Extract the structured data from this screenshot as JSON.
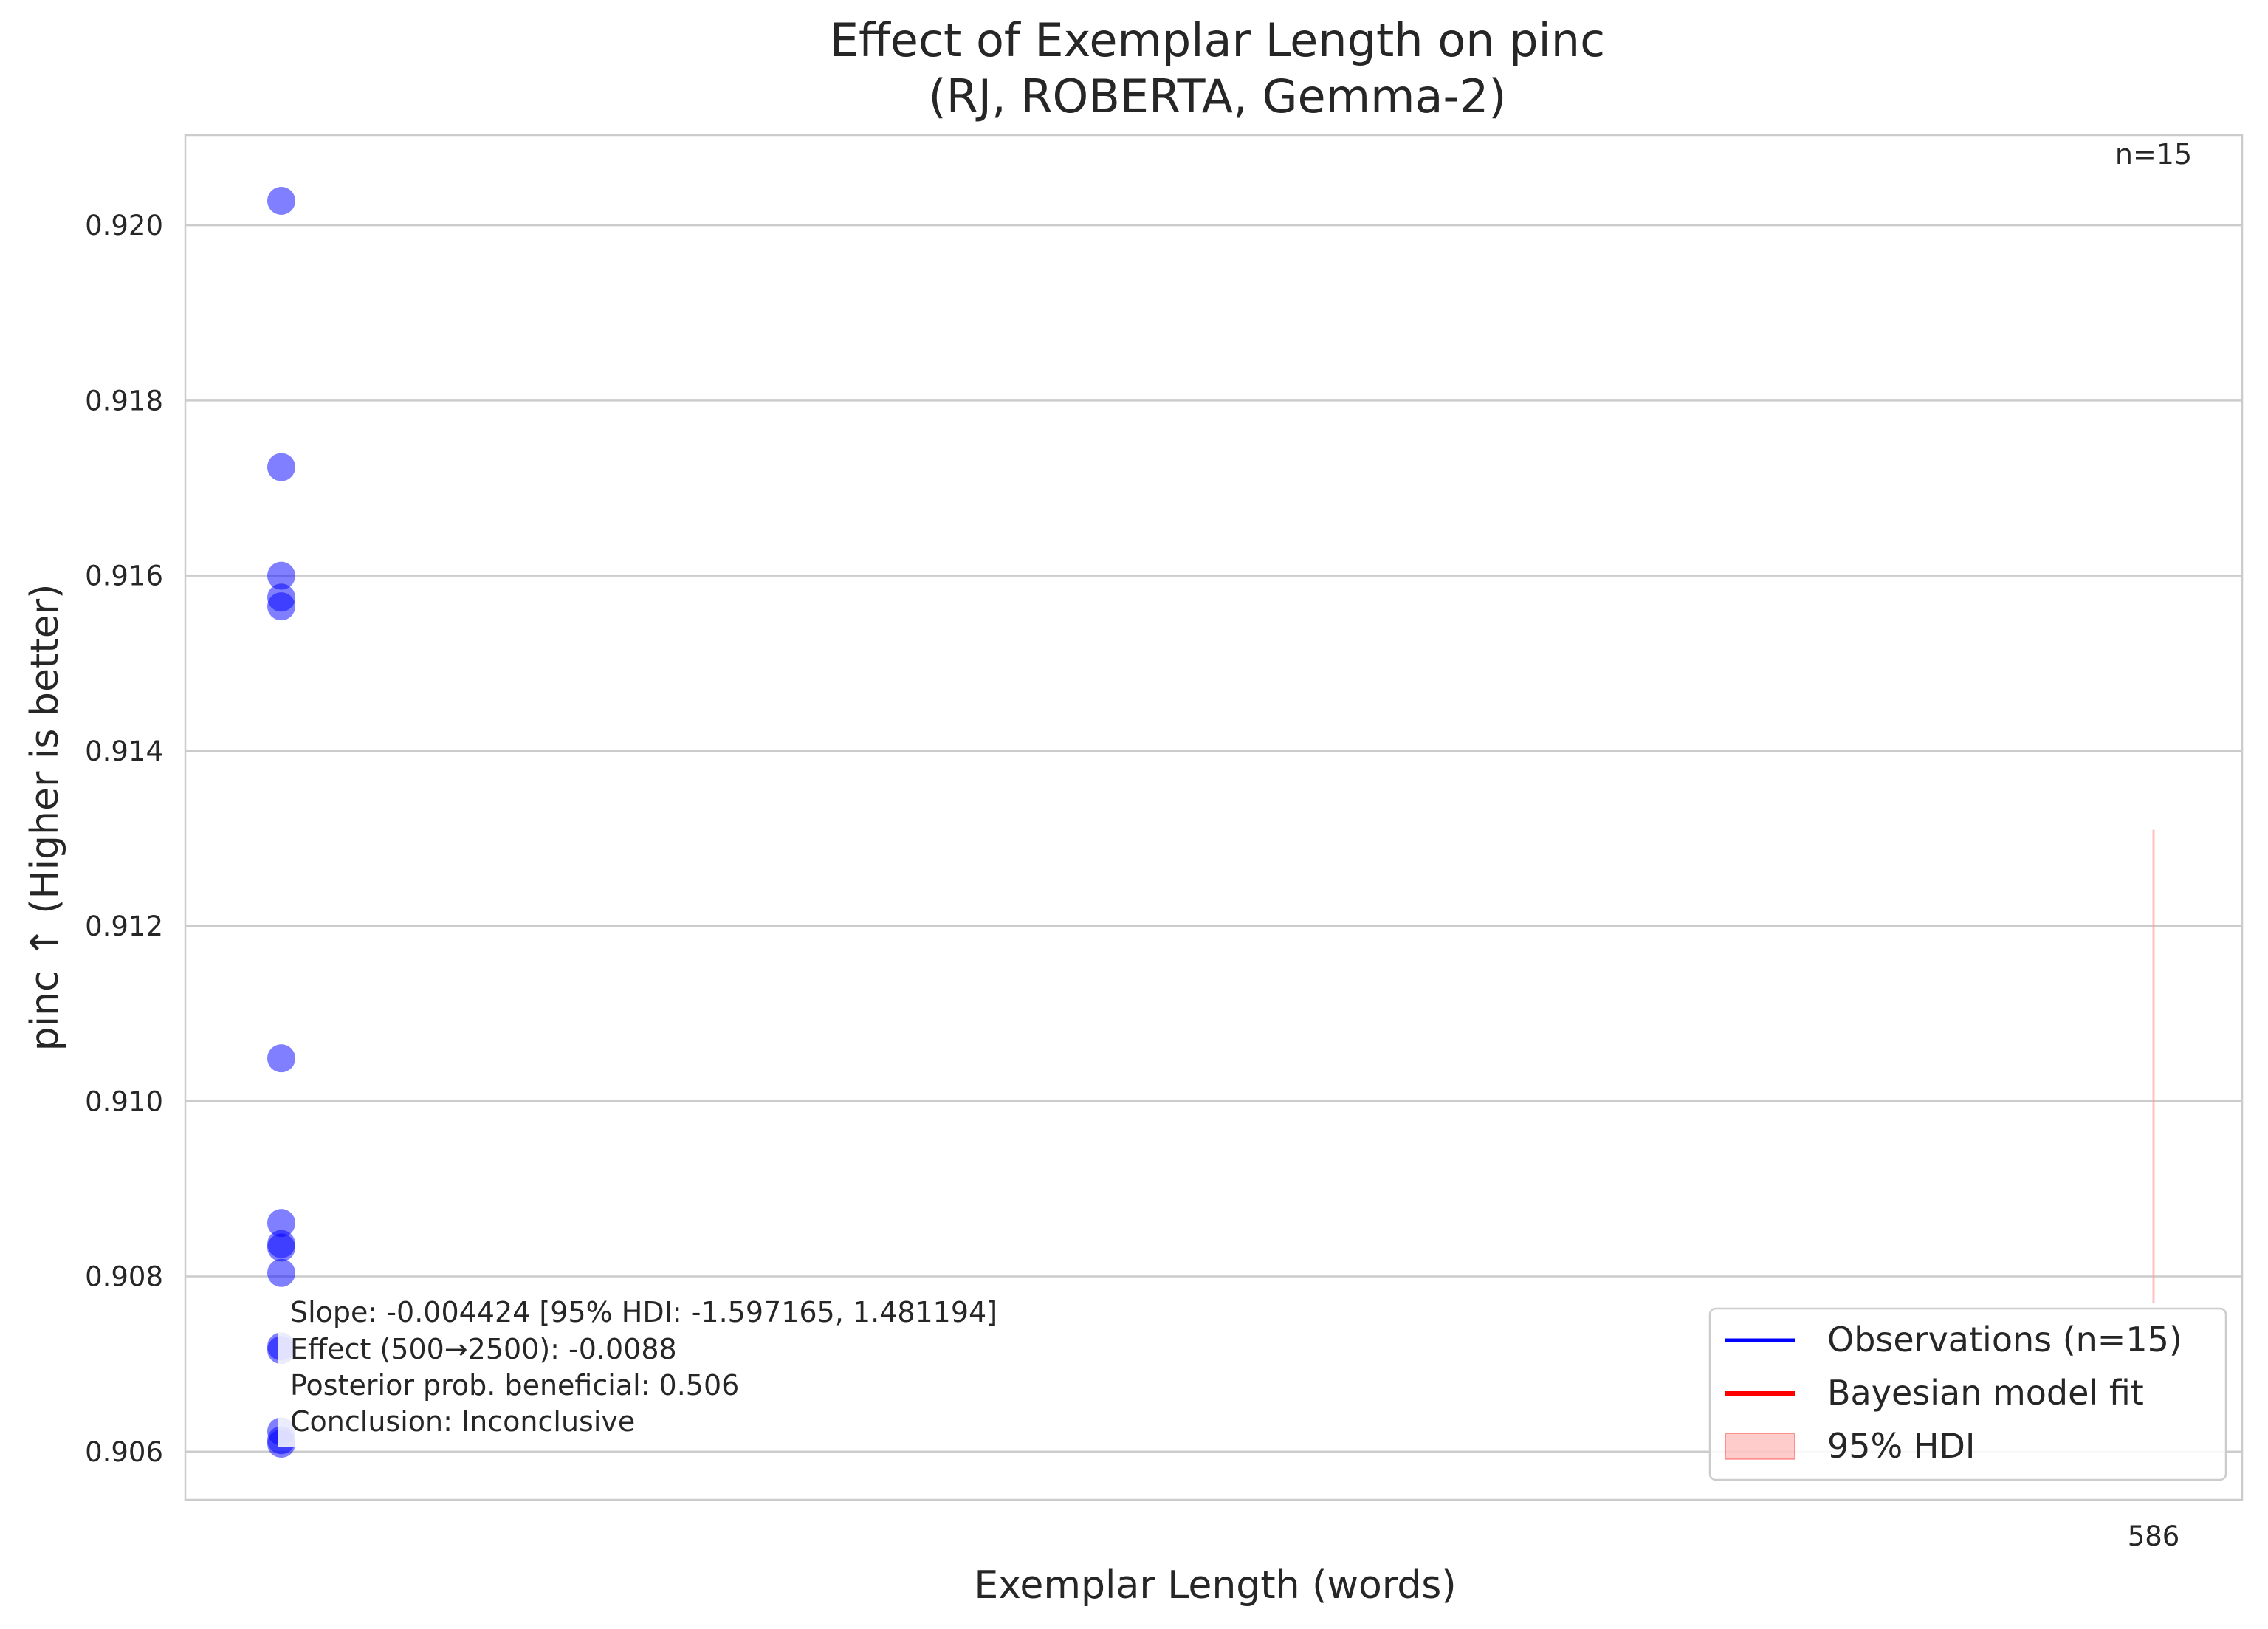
{
  "chart_data": {
    "type": "scatter",
    "title": "Effect of Exemplar Length on pinc",
    "subtitle": "(RJ, ROBERTA, Gemma-2)",
    "xlabel": "Exemplar Length (words)",
    "ylabel": "pinc ↑ (Higher is better)",
    "x_ticks": [
      "586"
    ],
    "y_ticks": [
      "0.906",
      "0.908",
      "0.910",
      "0.912",
      "0.914",
      "0.916",
      "0.918",
      "0.920"
    ],
    "ylim": [
      0.90545,
      0.92103
    ],
    "grid": true,
    "n_label": "n=15",
    "series": [
      {
        "name": "Observations (n=15)",
        "color": "#0000ff",
        "points": [
          {
            "x": 586,
            "y": 0.92028
          },
          {
            "x": 586,
            "y": 0.91724
          },
          {
            "x": 586,
            "y": 0.916
          },
          {
            "x": 586,
            "y": 0.91575
          },
          {
            "x": 586,
            "y": 0.91565
          },
          {
            "x": 586,
            "y": 0.91049
          },
          {
            "x": 586,
            "y": 0.90861
          },
          {
            "x": 586,
            "y": 0.90837
          },
          {
            "x": 586,
            "y": 0.90833
          },
          {
            "x": 586,
            "y": 0.90804
          },
          {
            "x": 586,
            "y": 0.9072
          },
          {
            "x": 586,
            "y": 0.90716
          },
          {
            "x": 586,
            "y": 0.90623
          },
          {
            "x": 586,
            "y": 0.90613
          },
          {
            "x": 586,
            "y": 0.90609
          }
        ]
      },
      {
        "name": "Bayesian model fit",
        "color": "#ff0000"
      },
      {
        "name": "95% HDI",
        "color": "#ff9999",
        "hdi": [
          0.9077,
          0.9131
        ]
      }
    ],
    "legend_position": "lower-right",
    "annotation": [
      "Slope: -0.004424 [95% HDI: -1.597165, 1.481194]",
      "Effect (500→2500): -0.0088",
      "Posterior prob. beneficial: 0.506",
      "Conclusion: Inconclusive"
    ]
  }
}
